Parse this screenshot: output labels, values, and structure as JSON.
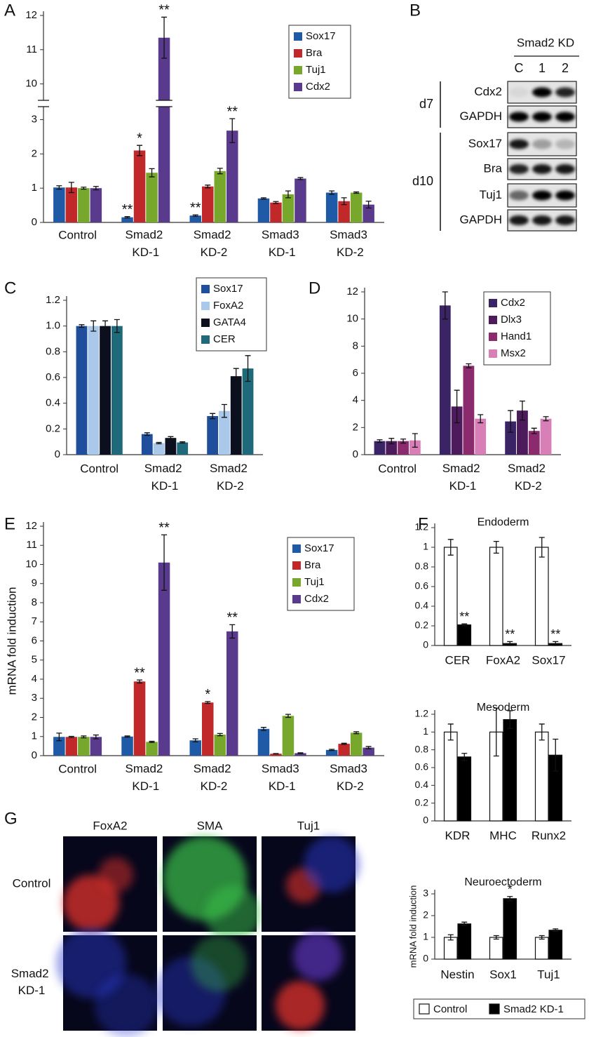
{
  "chart_data": [
    {
      "type": "bar",
      "panel": "A",
      "categories": [
        "Control",
        "Smad2 KD-1",
        "Smad2 KD-2",
        "Smad3 KD-1",
        "Smad3 KD-2"
      ],
      "ylim": [
        0,
        12
      ],
      "ybreak": [
        3.4,
        9.5
      ],
      "yticks": [
        0,
        1,
        2,
        3,
        10,
        11,
        12
      ],
      "series": [
        {
          "name": "Sox17",
          "color": "#1f5aa6",
          "values": [
            1.02,
            0.15,
            0.2,
            0.7,
            0.87
          ],
          "errors": [
            0.05,
            0.02,
            0.02,
            0.02,
            0.05
          ],
          "stars": [
            null,
            "**",
            "**",
            null,
            null
          ]
        },
        {
          "name": "Bra",
          "color": "#c0282a",
          "values": [
            1.02,
            2.1,
            1.05,
            0.58,
            0.62
          ],
          "errors": [
            0.15,
            0.15,
            0.04,
            0.03,
            0.1
          ],
          "stars": [
            null,
            "*",
            null,
            null,
            null
          ]
        },
        {
          "name": "Tuj1",
          "color": "#77a82b",
          "values": [
            1.0,
            1.45,
            1.5,
            0.82,
            0.87
          ],
          "errors": [
            0.03,
            0.12,
            0.08,
            0.1,
            0.02
          ],
          "stars": [
            null,
            null,
            null,
            null,
            null
          ]
        },
        {
          "name": "Cdx2",
          "color": "#5a3a8c",
          "values": [
            1.0,
            11.35,
            2.68,
            1.28,
            0.52
          ],
          "errors": [
            0.05,
            0.6,
            0.35,
            0.03,
            0.1
          ],
          "stars": [
            null,
            "**",
            "**",
            null,
            null
          ]
        }
      ]
    },
    {
      "type": "bar",
      "panel": "C",
      "categories": [
        "Control",
        "Smad2 KD-1",
        "Smad2 KD-2"
      ],
      "ylim": [
        0,
        1.2
      ],
      "yticks": [
        0,
        0.2,
        0.4,
        0.6,
        0.8,
        {
          "value": 1,
          "label": "1.0"
        },
        1.2
      ],
      "series": [
        {
          "name": "Sox17",
          "color": "#1f4e9c",
          "values": [
            1.0,
            0.16,
            0.3
          ],
          "errors": [
            0.01,
            0.01,
            0.02
          ]
        },
        {
          "name": "FoxA2",
          "color": "#a9c8ea",
          "values": [
            1.0,
            0.09,
            0.34
          ],
          "errors": [
            0.04,
            0.005,
            0.05
          ]
        },
        {
          "name": "GATA4",
          "color": "#0b0f1e",
          "values": [
            1.0,
            0.13,
            0.61
          ],
          "errors": [
            0.04,
            0.01,
            0.06
          ]
        },
        {
          "name": "CER",
          "color": "#1f6a7a",
          "values": [
            1.0,
            0.095,
            0.67
          ],
          "errors": [
            0.05,
            0.005,
            0.1
          ]
        }
      ]
    },
    {
      "type": "bar",
      "panel": "D",
      "categories": [
        "Control",
        "Smad2 KD-1",
        "Smad2 KD-2"
      ],
      "ylim": [
        0,
        12
      ],
      "yticks": [
        0,
        2,
        4,
        6,
        8,
        10,
        12
      ],
      "series": [
        {
          "name": "Cdx2",
          "color": "#3b2466",
          "values": [
            1.0,
            11.0,
            2.45
          ],
          "errors": [
            0.1,
            1.0,
            0.8
          ]
        },
        {
          "name": "Dlx3",
          "color": "#4d1a5c",
          "values": [
            1.0,
            3.55,
            3.25
          ],
          "errors": [
            0.2,
            1.2,
            0.7
          ]
        },
        {
          "name": "Hand1",
          "color": "#8b2b6e",
          "values": [
            1.0,
            6.55,
            1.75
          ],
          "errors": [
            0.15,
            0.15,
            0.2
          ]
        },
        {
          "name": "Msx2",
          "color": "#d97fb8",
          "values": [
            1.05,
            2.65,
            2.65
          ],
          "errors": [
            0.5,
            0.3,
            0.15
          ]
        }
      ]
    },
    {
      "type": "bar",
      "panel": "E",
      "ylabel": "mRNA fold induction",
      "categories": [
        "Control",
        "Smad2 KD-1",
        "Smad2 KD-2",
        "Smad3 KD-1",
        "Smad3 KD-2"
      ],
      "ylim": [
        0,
        12
      ],
      "yticks": [
        0,
        1,
        2,
        3,
        4,
        5,
        6,
        7,
        8,
        9,
        10,
        11,
        12
      ],
      "series": [
        {
          "name": "Sox17",
          "color": "#1f5aa6",
          "values": [
            0.98,
            1.0,
            0.8,
            1.4,
            0.3
          ],
          "errors": [
            0.2,
            0.03,
            0.08,
            0.08,
            0.03
          ],
          "stars": [
            null,
            null,
            null,
            null,
            null
          ]
        },
        {
          "name": "Bra",
          "color": "#c0282a",
          "values": [
            0.98,
            3.88,
            2.78,
            0.1,
            0.62
          ],
          "errors": [
            0.03,
            0.08,
            0.05,
            0.01,
            0.03
          ],
          "stars": [
            null,
            "**",
            "*",
            null,
            null
          ]
        },
        {
          "name": "Tuj1",
          "color": "#77a82b",
          "values": [
            0.98,
            0.72,
            1.1,
            2.08,
            1.2
          ],
          "errors": [
            0.05,
            0.03,
            0.06,
            0.08,
            0.05
          ],
          "stars": [
            null,
            null,
            null,
            null,
            null
          ]
        },
        {
          "name": "Cdx2",
          "color": "#5a3a8c",
          "values": [
            0.98,
            10.1,
            6.5,
            0.13,
            0.42
          ],
          "errors": [
            0.1,
            1.45,
            0.35,
            0.02,
            0.06
          ],
          "stars": [
            null,
            "**",
            "**",
            null,
            null
          ]
        }
      ]
    },
    {
      "type": "bar-panel",
      "panel": "F",
      "legend": [
        {
          "name": "Control",
          "color": "#ffffff"
        },
        {
          "name": "Smad2 KD-1",
          "color": "#000000"
        }
      ],
      "subplots": [
        {
          "title": "Endoderm",
          "categories": [
            "CER",
            "FoxA2",
            "Sox17"
          ],
          "ylim": [
            0,
            1.2
          ],
          "yticks": [
            0,
            0.2,
            0.4,
            0.6,
            0.8,
            1,
            1.2
          ],
          "series": [
            {
              "values": [
                1,
                1,
                1
              ],
              "errors": [
                0.08,
                0.06,
                0.1
              ]
            },
            {
              "values": [
                0.21,
                0.02,
                0.02
              ],
              "errors": [
                0.01,
                0.02,
                0.02
              ],
              "stars": [
                "**",
                "**",
                "**"
              ]
            }
          ]
        },
        {
          "title": "Mesoderm",
          "categories": [
            "KDR",
            "MHC",
            "Runx2"
          ],
          "ylim": [
            0,
            1.2
          ],
          "yticks": [
            0,
            0.2,
            0.4,
            0.6,
            0.8,
            1,
            1.2
          ],
          "series": [
            {
              "values": [
                1,
                1,
                1
              ],
              "errors": [
                0.09,
                0.27,
                0.09
              ]
            },
            {
              "values": [
                0.72,
                1.14,
                0.74
              ],
              "errors": [
                0.04,
                0.1,
                0.18
              ]
            }
          ]
        },
        {
          "title": "Neuroectoderm",
          "ylabel": "mRNA fold induction",
          "categories": [
            "Nestin",
            "Sox1",
            "Tuj1"
          ],
          "ylim": [
            0,
            3
          ],
          "yticks": [
            0,
            1,
            2,
            3
          ],
          "series": [
            {
              "values": [
                1,
                1,
                1
              ],
              "errors": [
                0.12,
                0.08,
                0.08
              ]
            },
            {
              "values": [
                1.62,
                2.78,
                1.33
              ],
              "errors": [
                0.08,
                0.1,
                0.06
              ],
              "stars": [
                null,
                "*",
                null
              ]
            }
          ]
        }
      ]
    }
  ],
  "blot": {
    "panel": "B",
    "header": "Smad2 KD",
    "lanes": [
      "C",
      "1",
      "2"
    ],
    "groups": [
      {
        "label": "d7",
        "rows": [
          "Cdx2",
          "GAPDH"
        ]
      },
      {
        "label": "d10",
        "rows": [
          "Sox17",
          "Bra",
          "Tuj1",
          "GAPDH"
        ]
      }
    ]
  },
  "images": {
    "panel": "G",
    "columns": [
      "FoxA2",
      "SMA",
      "Tuj1"
    ],
    "rows": [
      "Control",
      "Smad2 KD-1"
    ]
  }
}
